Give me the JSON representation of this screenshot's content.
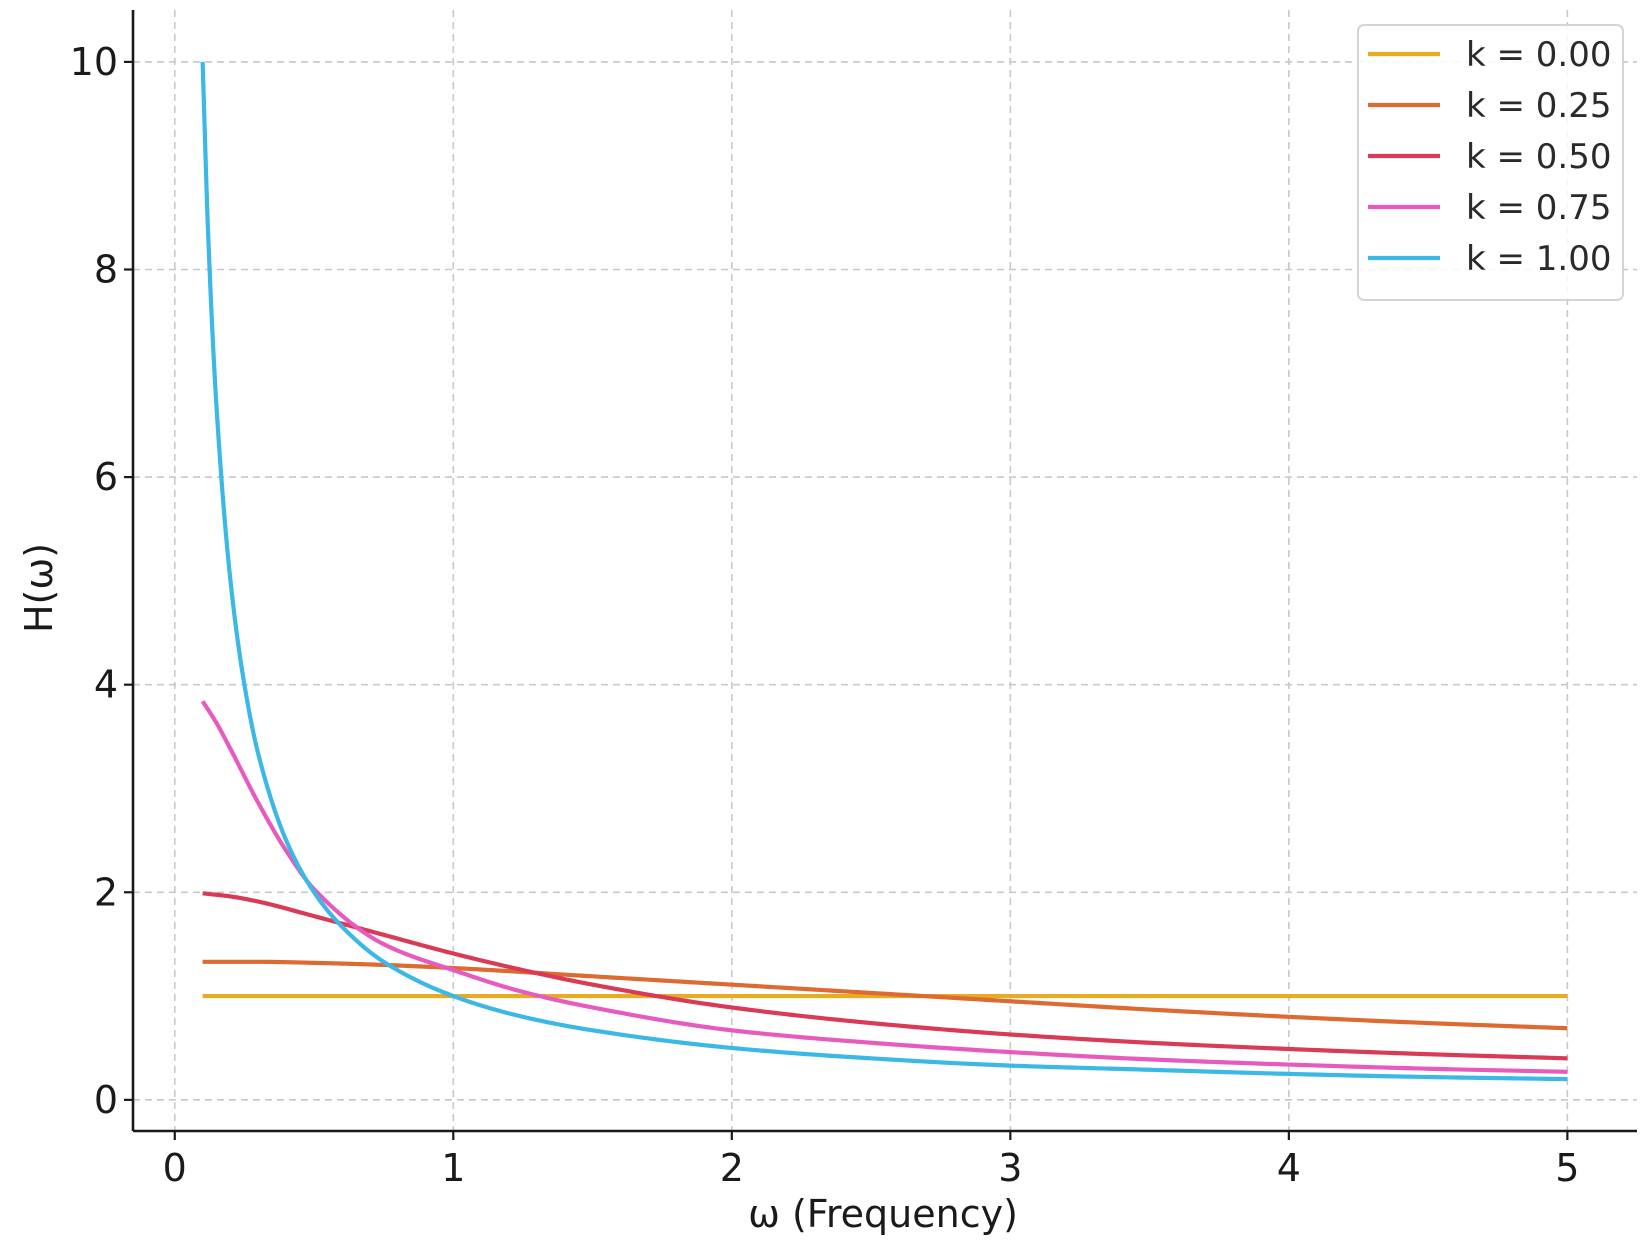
{
  "chart_data": {
    "type": "line",
    "title": "",
    "xlabel": "ω (Frequency)",
    "ylabel": "H(ω)",
    "xlim": [
      -0.15,
      5.25
    ],
    "ylim": [
      -0.3,
      10.5
    ],
    "xticks": [
      0,
      1,
      2,
      3,
      4,
      5
    ],
    "yticks": [
      0,
      2,
      4,
      6,
      8,
      10
    ],
    "xtick_labels": [
      "0",
      "1",
      "2",
      "3",
      "4",
      "5"
    ],
    "ytick_labels": [
      "0",
      "2",
      "4",
      "6",
      "8",
      "10"
    ],
    "grid": true,
    "legend_position": "top-right",
    "x_range": [
      0.1,
      5.0
    ],
    "series": [
      {
        "name": "k = 0.00",
        "color": "#e8ac22",
        "x": [
          0.1,
          0.5,
          1.0,
          1.5,
          2.0,
          2.5,
          3.0,
          3.5,
          4.0,
          4.5,
          5.0
        ],
        "values": [
          1.0,
          1.0,
          1.0,
          1.0,
          1.0,
          1.0,
          1.0,
          1.0,
          1.0,
          1.0,
          1.0
        ]
      },
      {
        "name": "k = 0.25",
        "color": "#dd6a30",
        "x": [
          0.1,
          0.3,
          0.5,
          0.75,
          1.0,
          1.5,
          2.0,
          2.5,
          3.0,
          3.5,
          4.0,
          4.5,
          5.0
        ],
        "values": [
          1.33,
          1.33,
          1.32,
          1.3,
          1.27,
          1.19,
          1.11,
          1.03,
          0.95,
          0.87,
          0.8,
          0.74,
          0.69
        ]
      },
      {
        "name": "k = 0.50",
        "color": "#d93a56",
        "x": [
          0.1,
          0.2,
          0.3,
          0.5,
          0.75,
          1.0,
          1.25,
          1.5,
          2.0,
          2.5,
          3.0,
          3.5,
          4.0,
          4.5,
          5.0
        ],
        "values": [
          1.99,
          1.96,
          1.91,
          1.77,
          1.59,
          1.41,
          1.25,
          1.11,
          0.89,
          0.74,
          0.63,
          0.55,
          0.49,
          0.44,
          0.4
        ]
      },
      {
        "name": "k = 0.75",
        "color": "#e75bbf",
        "x": [
          0.1,
          0.15,
          0.2,
          0.3,
          0.4,
          0.5,
          0.75,
          1.0,
          1.25,
          1.5,
          2.0,
          2.5,
          3.0,
          3.5,
          4.0,
          4.5,
          5.0
        ],
        "values": [
          3.84,
          3.63,
          3.38,
          2.86,
          2.4,
          2.03,
          1.5,
          1.25,
          1.04,
          0.89,
          0.67,
          0.55,
          0.46,
          0.39,
          0.34,
          0.3,
          0.27
        ]
      },
      {
        "name": "k = 1.00",
        "color": "#3bb8e6",
        "x": [
          0.1,
          0.12,
          0.15,
          0.2,
          0.25,
          0.3,
          0.4,
          0.5,
          0.6,
          0.75,
          1.0,
          1.25,
          1.5,
          2.0,
          2.5,
          3.0,
          3.5,
          4.0,
          4.5,
          5.0
        ],
        "values": [
          10.0,
          8.33,
          6.67,
          5.0,
          4.0,
          3.33,
          2.5,
          2.0,
          1.67,
          1.33,
          1.0,
          0.8,
          0.67,
          0.5,
          0.4,
          0.33,
          0.29,
          0.25,
          0.22,
          0.2
        ]
      }
    ]
  }
}
